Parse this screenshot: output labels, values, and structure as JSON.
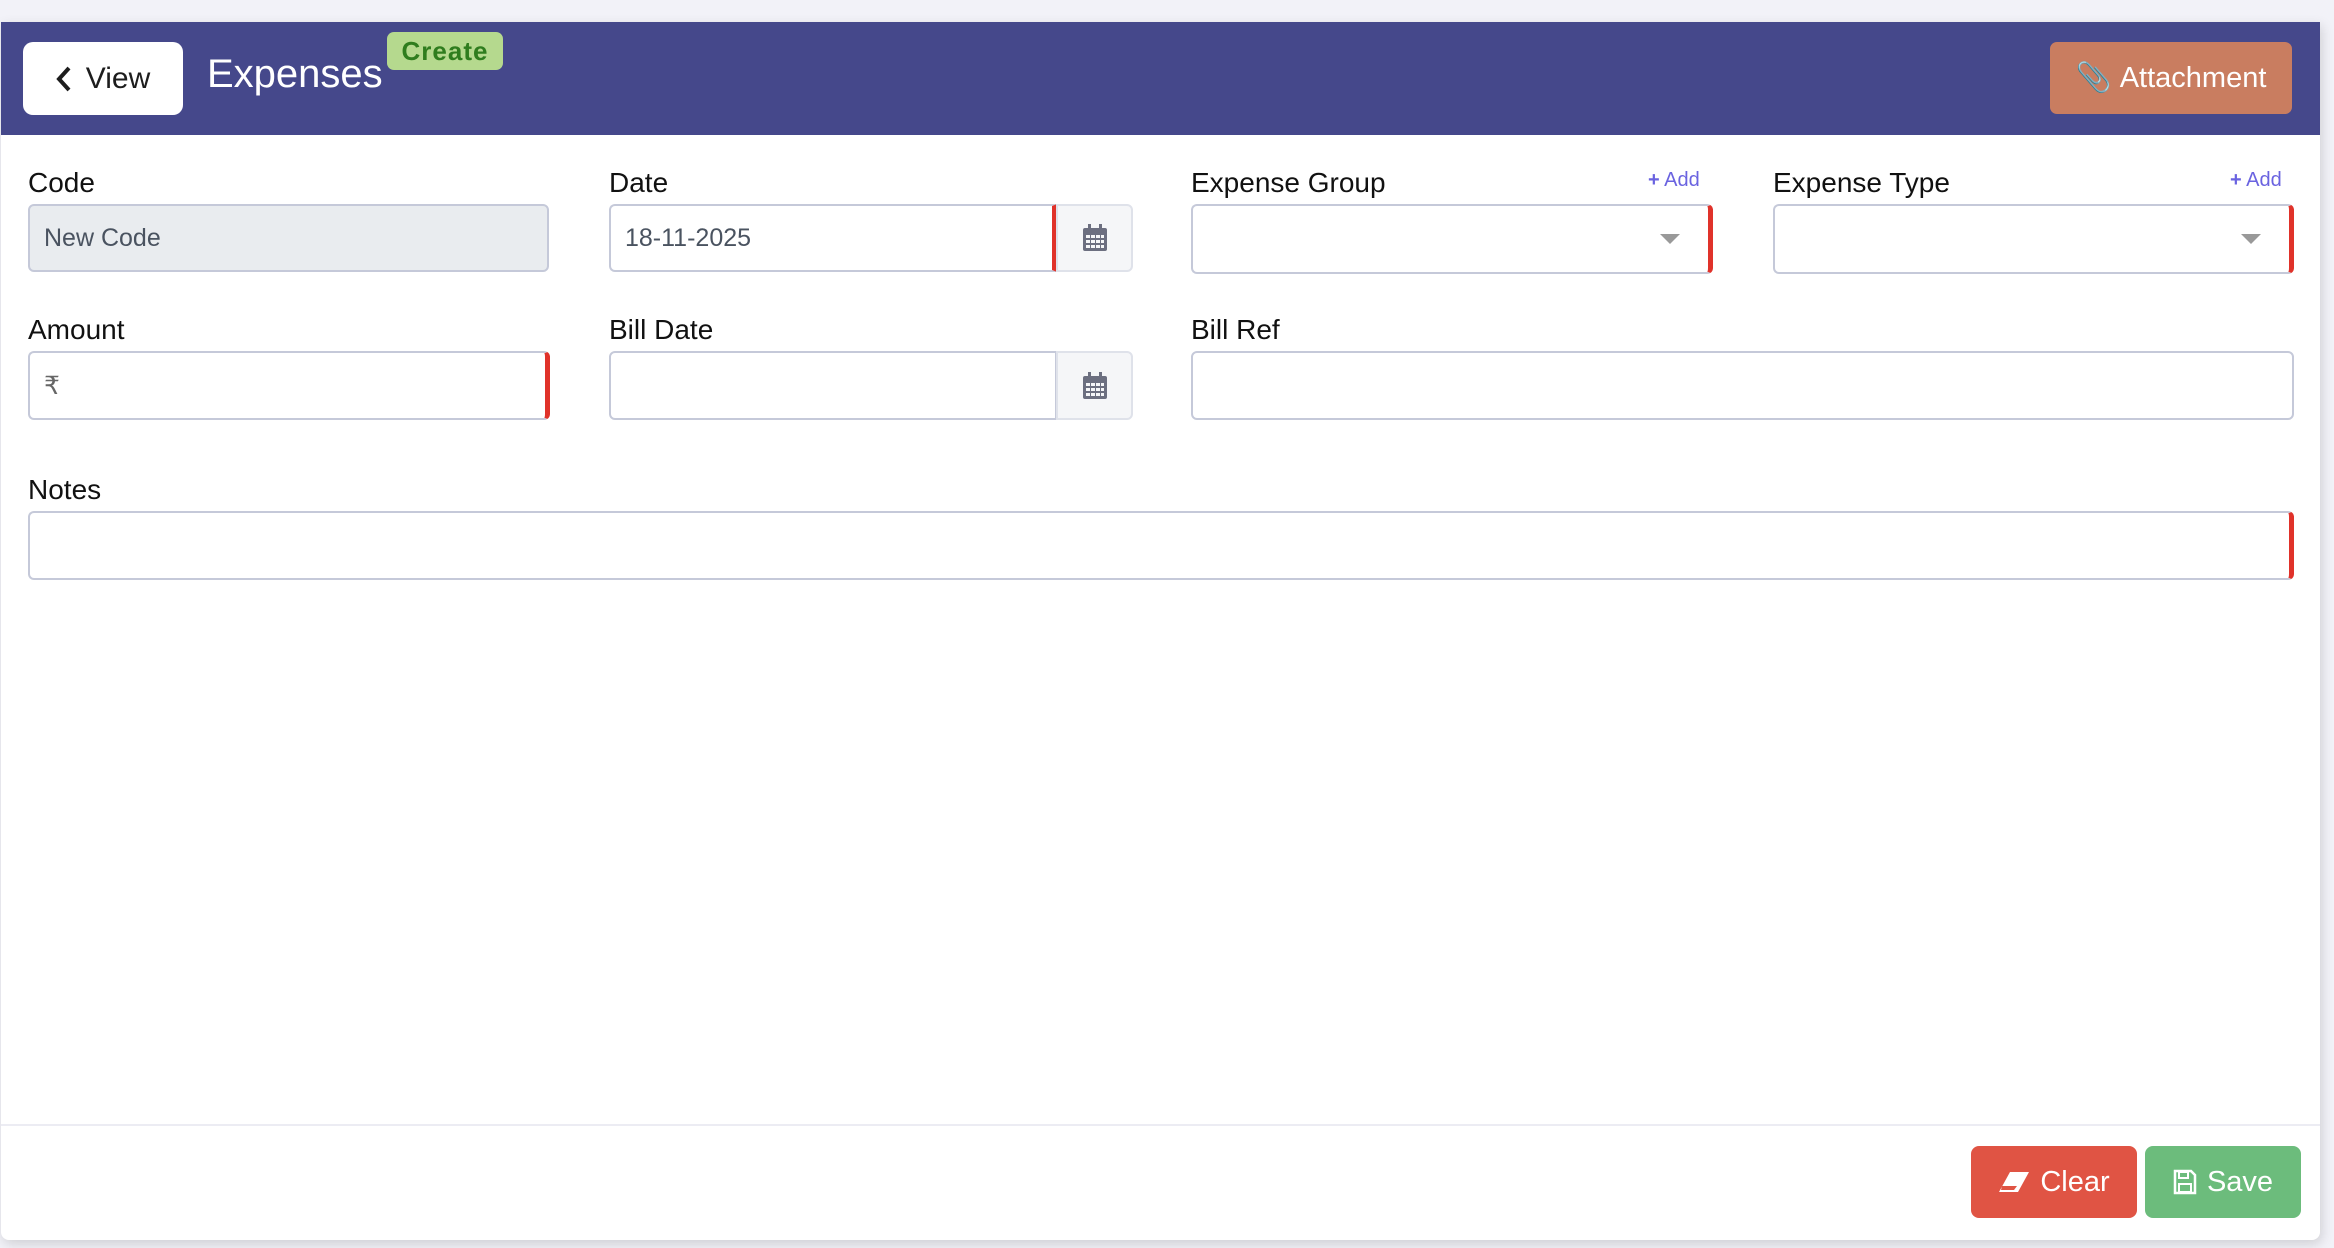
{
  "header": {
    "back_label": "View",
    "title": "Expenses",
    "mode_badge": "Create",
    "attachment_label": "Attachment"
  },
  "form": {
    "code": {
      "label": "Code",
      "value": "New Code"
    },
    "date": {
      "label": "Date",
      "value": "18-11-2025"
    },
    "expense_group": {
      "label": "Expense Group",
      "add_label": "Add",
      "value": ""
    },
    "expense_type": {
      "label": "Expense Type",
      "add_label": "Add",
      "value": ""
    },
    "amount": {
      "label": "Amount",
      "prefix": "₹",
      "value": ""
    },
    "bill_date": {
      "label": "Bill Date",
      "value": ""
    },
    "bill_ref": {
      "label": "Bill Ref",
      "value": ""
    },
    "notes": {
      "label": "Notes",
      "value": ""
    }
  },
  "footer": {
    "clear_label": "Clear",
    "save_label": "Save"
  },
  "colors": {
    "header": "#45488b",
    "badge": "#b5d98e",
    "attachment": "#c97d60",
    "clear": "#e05444",
    "save": "#6cbc7c",
    "required": "#e0322a",
    "add_link": "#6a63e0"
  }
}
